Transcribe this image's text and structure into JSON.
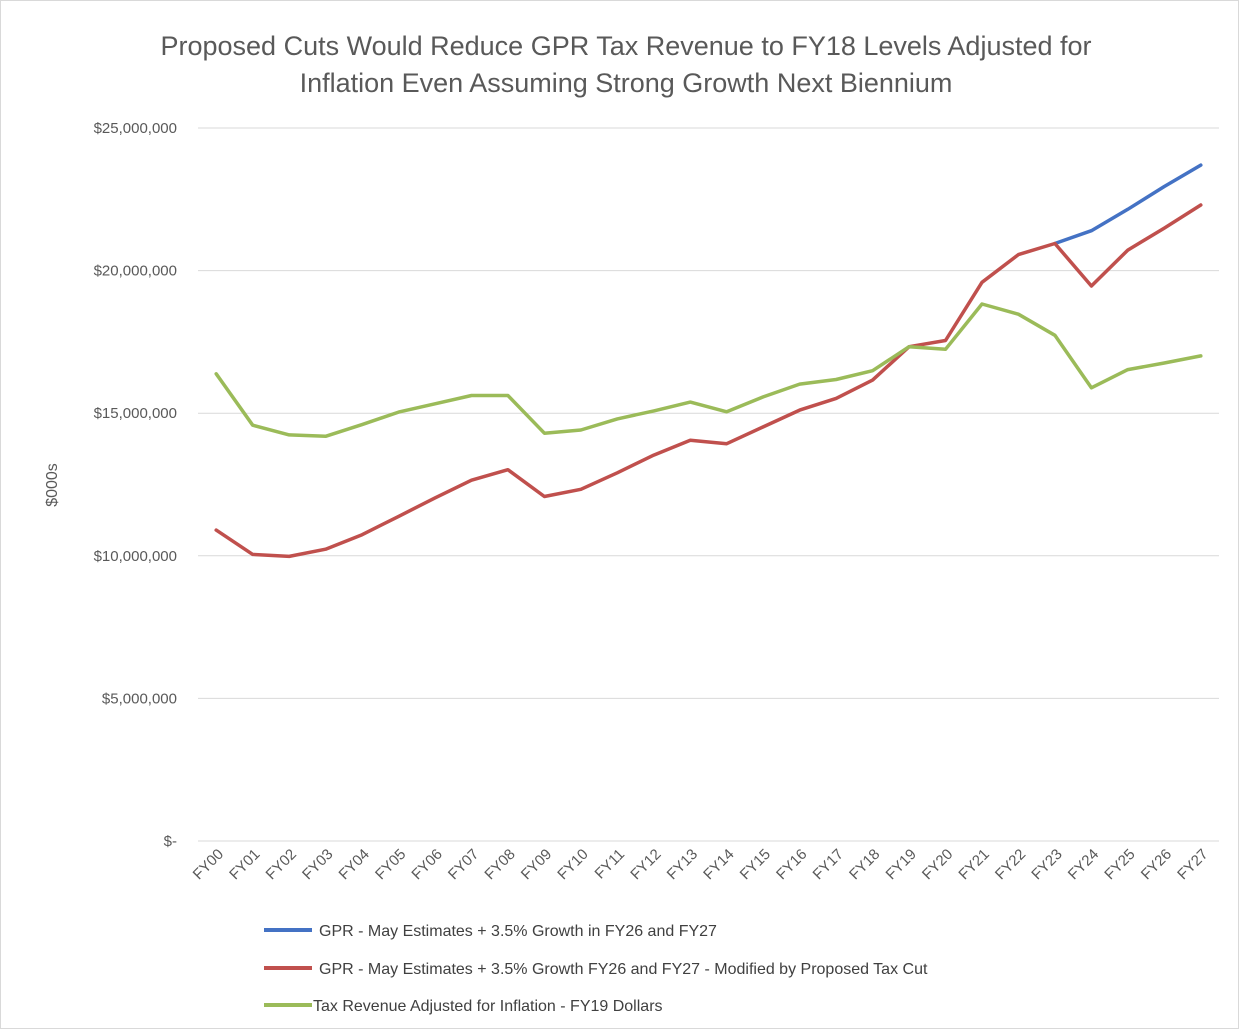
{
  "chart_data": {
    "type": "line",
    "title": "Proposed Cuts Would Reduce GPR Tax Revenue to FY18 Levels Adjusted for Inflation Even Assuming Strong Growth Next Biennium",
    "title_lines": [
      "Proposed Cuts Would Reduce GPR Tax Revenue to FY18 Levels Adjusted for",
      "Inflation Even Assuming Strong Growth Next Biennium"
    ],
    "xlabel": "",
    "ylabel": "$000s",
    "ylim": [
      0,
      25000000
    ],
    "yticks": [
      0,
      5000000,
      10000000,
      15000000,
      20000000,
      25000000
    ],
    "ytick_labels": [
      "$-",
      "$5,000,000",
      "$10,000,000",
      "$15,000,000",
      "$20,000,000",
      "$25,000,000"
    ],
    "grid": true,
    "legend_position": "bottom",
    "categories": [
      "FY00",
      "FY01",
      "FY02",
      "FY03",
      "FY04",
      "FY05",
      "FY06",
      "FY07",
      "FY08",
      "FY09",
      "FY10",
      "FY11",
      "FY12",
      "FY13",
      "FY14",
      "FY15",
      "FY16",
      "FY17",
      "FY18",
      "FY19",
      "FY20",
      "FY21",
      "FY22",
      "FY23",
      "FY24",
      "FY25",
      "FY26",
      "FY27"
    ],
    "series": [
      {
        "name": "GPR - May Estimates + 3.5% Growth in FY26 and FY27",
        "color": "#4472c4",
        "values": [
          null,
          null,
          null,
          null,
          null,
          null,
          null,
          null,
          null,
          null,
          null,
          null,
          null,
          null,
          null,
          null,
          null,
          null,
          null,
          null,
          null,
          null,
          null,
          20950000,
          21400000,
          22150000,
          22950000,
          23700000
        ]
      },
      {
        "name": "GPR - May Estimates + 3.5% Growth FY26 and FY27 - Modified by Proposed Tax Cut",
        "color": "#c0504d",
        "values": [
          10900000,
          10050000,
          9980000,
          10230000,
          10740000,
          11380000,
          12030000,
          12650000,
          13020000,
          12080000,
          12330000,
          12910000,
          13530000,
          14050000,
          13930000,
          14520000,
          15110000,
          15520000,
          16160000,
          17330000,
          17550000,
          19590000,
          20560000,
          20950000,
          19460000,
          20720000,
          21490000,
          22300000
        ]
      },
      {
        "name": "Tax Revenue Adjusted for Inflation - FY19 Dollars",
        "color": "#9bbb59",
        "values": [
          16380000,
          14580000,
          14240000,
          14190000,
          14600000,
          15040000,
          15330000,
          15620000,
          15620000,
          14300000,
          14410000,
          14800000,
          15080000,
          15390000,
          15050000,
          15570000,
          16020000,
          16180000,
          16490000,
          17330000,
          17240000,
          18830000,
          18470000,
          17730000,
          15890000,
          16530000,
          16760000,
          17010000
        ]
      }
    ]
  }
}
